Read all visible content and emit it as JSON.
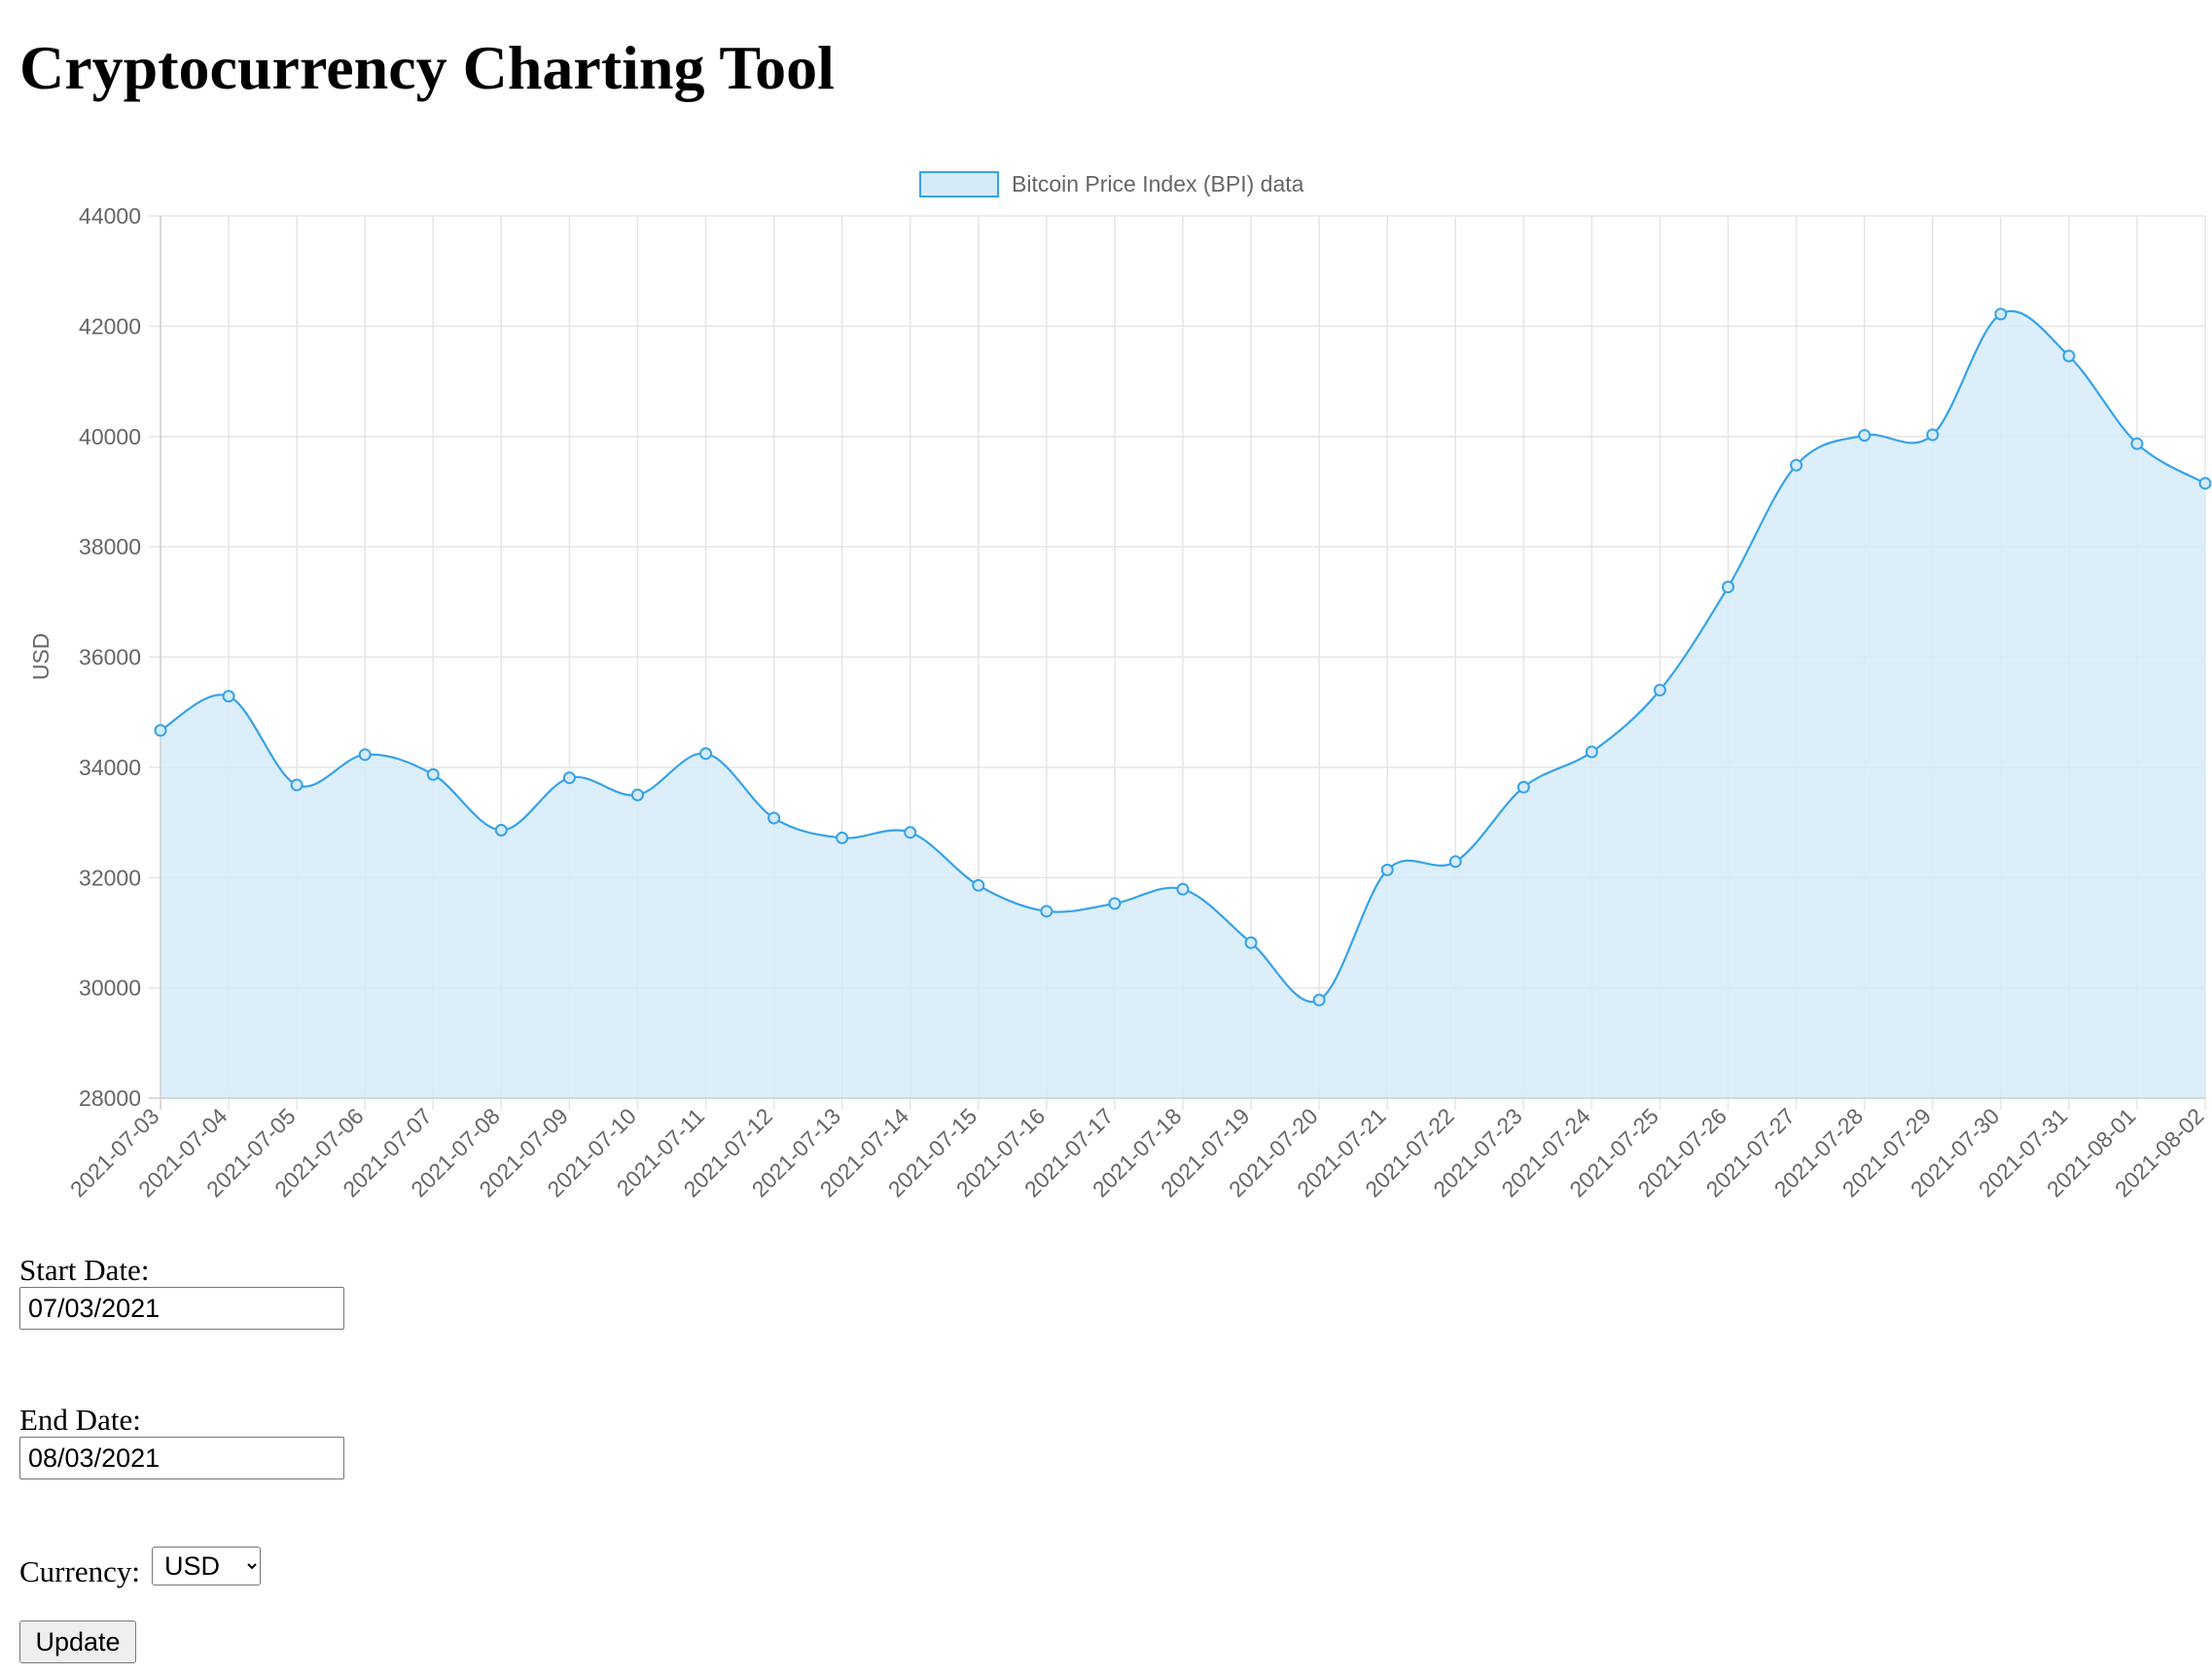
{
  "page": {
    "title": "Cryptocurrency Charting Tool"
  },
  "form": {
    "start_label": "Start Date:",
    "start_value": "07/03/2021",
    "end_label": "End Date:",
    "end_value": "08/03/2021",
    "currency_label": "Currency:",
    "currency_value": "USD",
    "update_label": "Update"
  },
  "colors": {
    "line": "#36a2eb",
    "fill": "#d6ebf9",
    "grid": "#e5e5e5",
    "text": "#666666"
  },
  "chart_data": {
    "type": "line",
    "ylabel": "USD",
    "ylim": [
      28000,
      44000
    ],
    "yticks": [
      28000,
      30000,
      32000,
      34000,
      36000,
      38000,
      40000,
      42000,
      44000
    ],
    "grid": true,
    "legend_position": "top-center",
    "series": [
      {
        "name": "Bitcoin Price Index (BPI) data",
        "fill": true,
        "curve": "smooth",
        "points": [
          {
            "x": "2021-07-03",
            "y": 34670
          },
          {
            "x": "2021-07-04",
            "y": 35290
          },
          {
            "x": "2021-07-05",
            "y": 33680
          },
          {
            "x": "2021-07-06",
            "y": 34230
          },
          {
            "x": "2021-07-07",
            "y": 33870
          },
          {
            "x": "2021-07-08",
            "y": 32860
          },
          {
            "x": "2021-07-09",
            "y": 33810
          },
          {
            "x": "2021-07-10",
            "y": 33500
          },
          {
            "x": "2021-07-11",
            "y": 34250
          },
          {
            "x": "2021-07-12",
            "y": 33080
          },
          {
            "x": "2021-07-13",
            "y": 32720
          },
          {
            "x": "2021-07-14",
            "y": 32820
          },
          {
            "x": "2021-07-15",
            "y": 31860
          },
          {
            "x": "2021-07-16",
            "y": 31390
          },
          {
            "x": "2021-07-17",
            "y": 31530
          },
          {
            "x": "2021-07-18",
            "y": 31790
          },
          {
            "x": "2021-07-19",
            "y": 30820
          },
          {
            "x": "2021-07-20",
            "y": 29780
          },
          {
            "x": "2021-07-21",
            "y": 32140
          },
          {
            "x": "2021-07-22",
            "y": 32290
          },
          {
            "x": "2021-07-23",
            "y": 33640
          },
          {
            "x": "2021-07-24",
            "y": 34280
          },
          {
            "x": "2021-07-25",
            "y": 35400
          },
          {
            "x": "2021-07-26",
            "y": 37270
          },
          {
            "x": "2021-07-27",
            "y": 39480
          },
          {
            "x": "2021-07-28",
            "y": 40020
          },
          {
            "x": "2021-07-29",
            "y": 40030
          },
          {
            "x": "2021-07-30",
            "y": 42220
          },
          {
            "x": "2021-07-31",
            "y": 41460
          },
          {
            "x": "2021-08-01",
            "y": 39870
          },
          {
            "x": "2021-08-02",
            "y": 39150
          }
        ]
      }
    ]
  }
}
